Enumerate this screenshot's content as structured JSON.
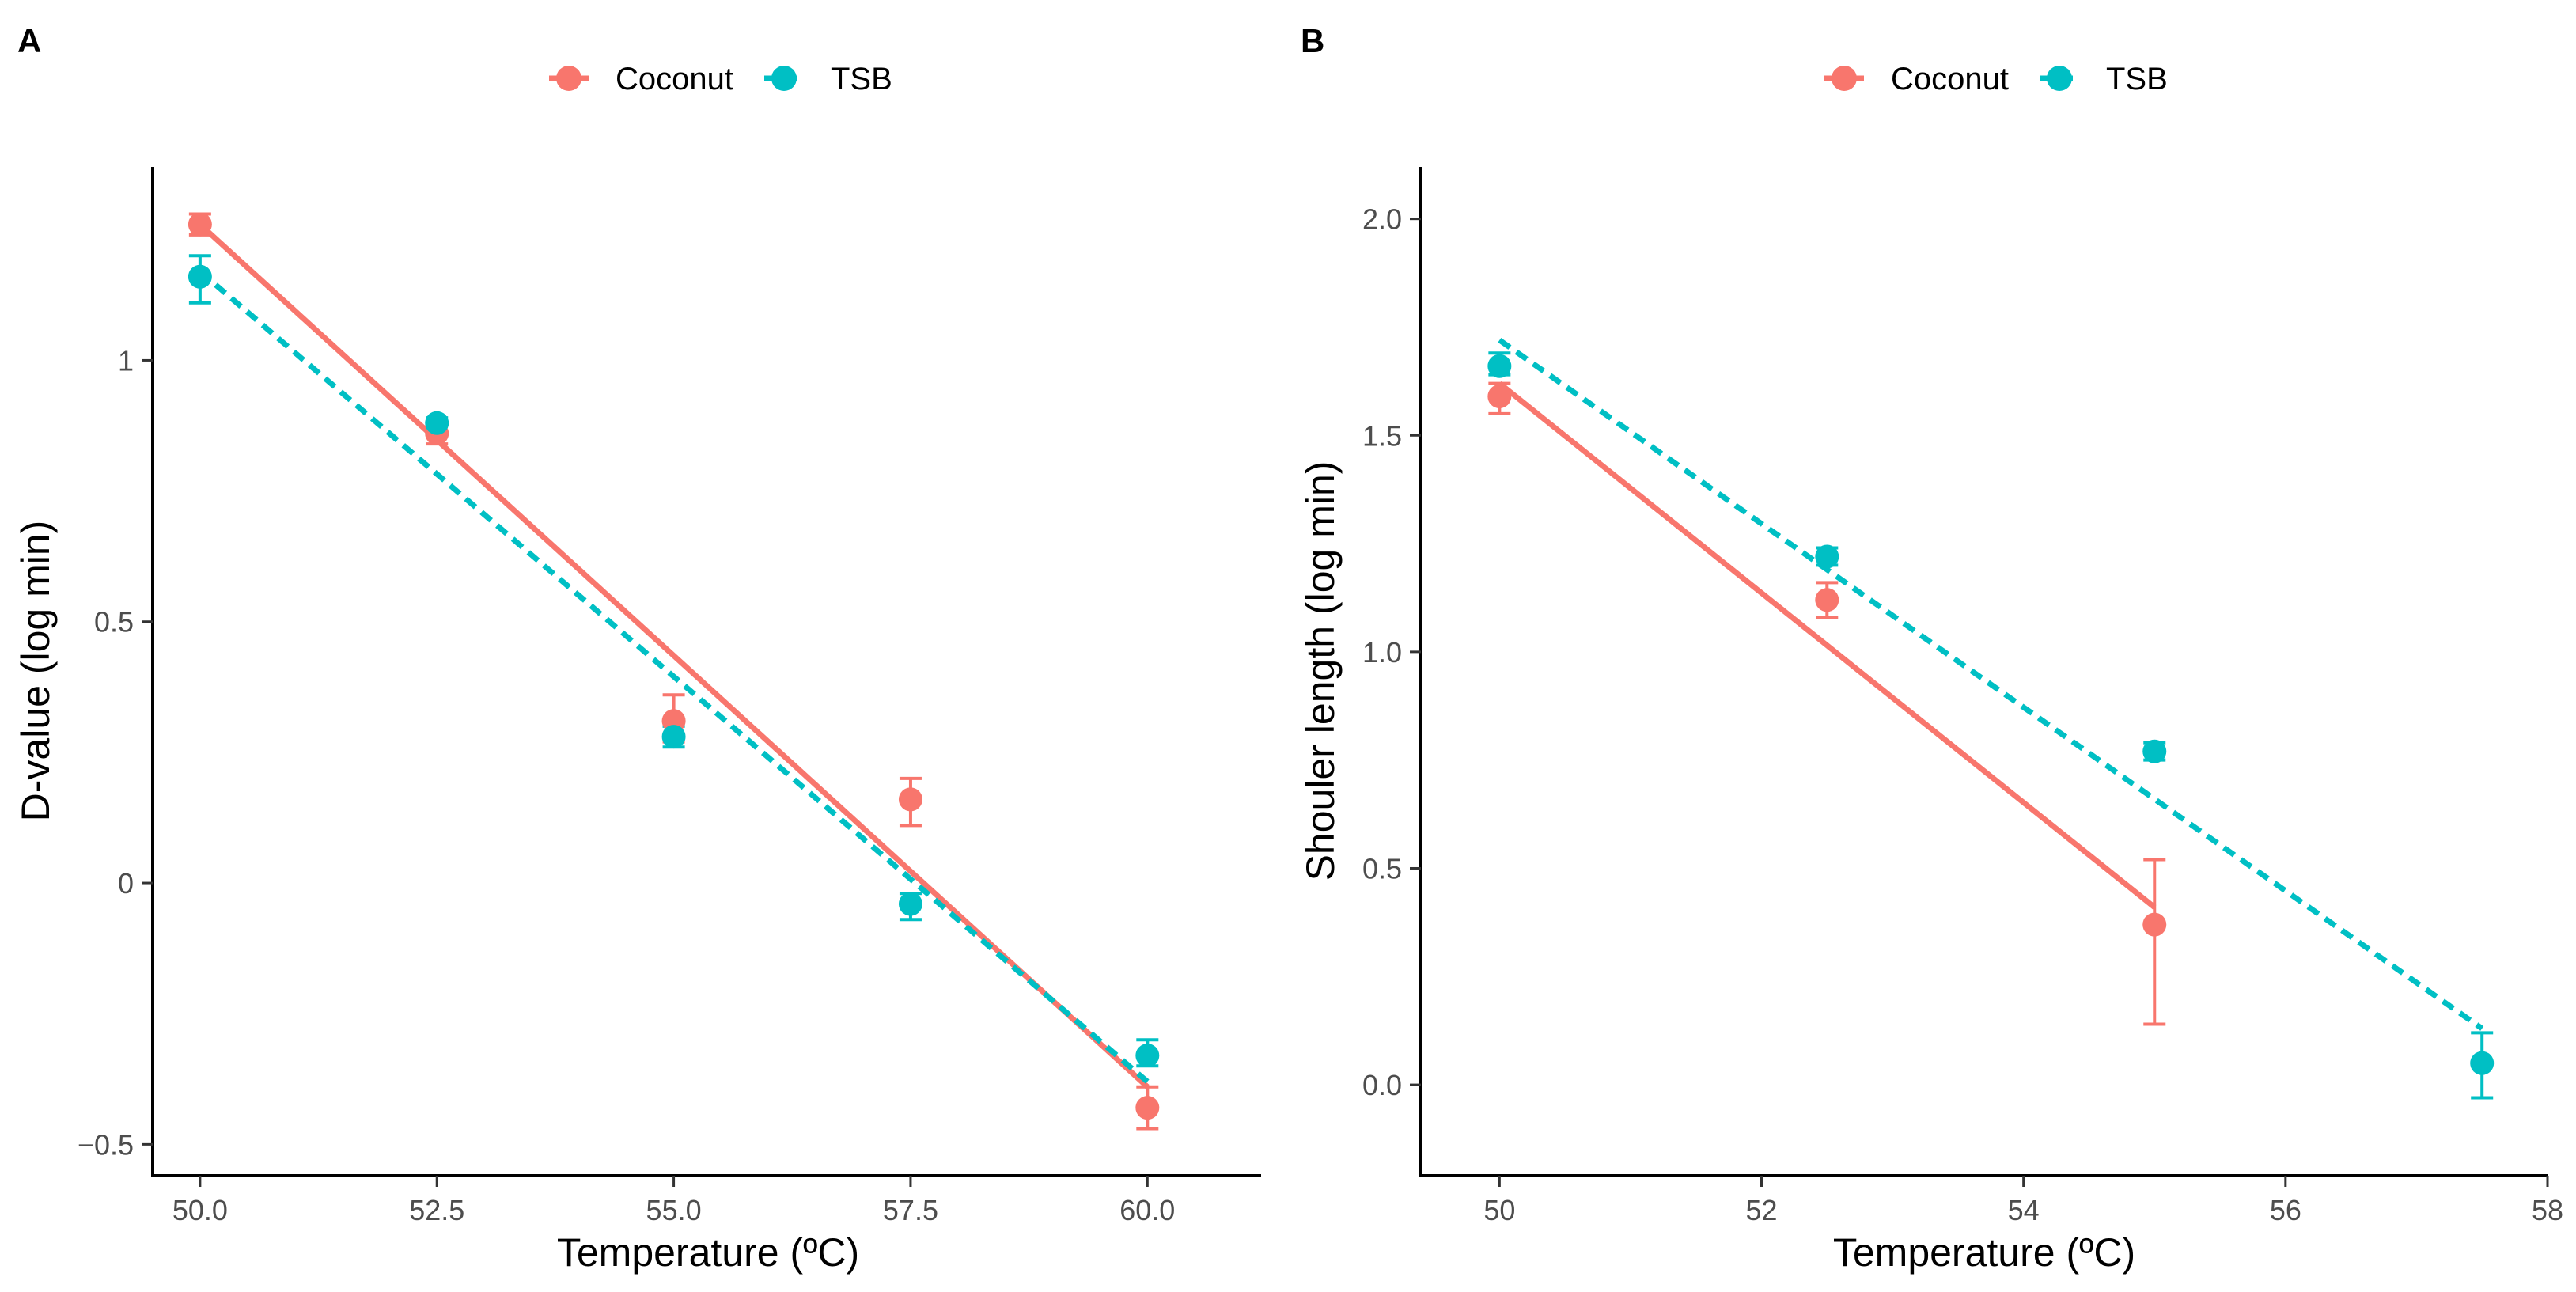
{
  "chart_data": [
    {
      "type": "scatter",
      "panel_label": "A",
      "xlabel": "Temperature (ºC)",
      "ylabel": "D-value (log min)",
      "xlim": [
        49.5,
        61.2
      ],
      "ylim": [
        -0.56,
        1.37
      ],
      "x_ticks": [
        50.0,
        52.5,
        55.0,
        57.5,
        60.0
      ],
      "x_tick_labels": [
        "50.0",
        "52.5",
        "55.0",
        "57.5",
        "60.0"
      ],
      "y_ticks": [
        -0.5,
        0,
        0.5,
        1
      ],
      "y_tick_labels": [
        "−0.5",
        "0",
        "0.5",
        "1"
      ],
      "grid": false,
      "legend": {
        "position": "top-center",
        "entries": [
          "Coconut",
          "TSB"
        ]
      },
      "series": [
        {
          "name": "Coconut",
          "color": "#F8766D",
          "line_style": "solid",
          "points": [
            {
              "x": 50.0,
              "y": 1.26,
              "lo": 1.24,
              "hi": 1.28
            },
            {
              "x": 52.5,
              "y": 0.86,
              "lo": 0.84,
              "hi": 0.88
            },
            {
              "x": 55.0,
              "y": 0.31,
              "lo": 0.27,
              "hi": 0.36
            },
            {
              "x": 57.5,
              "y": 0.16,
              "lo": 0.11,
              "hi": 0.2
            },
            {
              "x": 60.0,
              "y": -0.43,
              "lo": -0.47,
              "hi": -0.39
            }
          ],
          "fit": {
            "x": [
              50.0,
              60.0
            ],
            "y": [
              1.26,
              -0.39
            ]
          }
        },
        {
          "name": "TSB",
          "color": "#00BFC4",
          "line_style": "dashed",
          "points": [
            {
              "x": 50.0,
              "y": 1.16,
              "lo": 1.11,
              "hi": 1.2
            },
            {
              "x": 52.5,
              "y": 0.88,
              "lo": 0.86,
              "hi": 0.89
            },
            {
              "x": 55.0,
              "y": 0.28,
              "lo": 0.26,
              "hi": 0.3
            },
            {
              "x": 57.5,
              "y": -0.04,
              "lo": -0.07,
              "hi": -0.02
            },
            {
              "x": 60.0,
              "y": -0.33,
              "lo": -0.35,
              "hi": -0.3
            }
          ],
          "fit": {
            "x": [
              50.0,
              60.0
            ],
            "y": [
              1.17,
              -0.38
            ]
          }
        }
      ]
    },
    {
      "type": "scatter",
      "panel_label": "B",
      "xlabel": "Temperature (ºC)",
      "ylabel": "Shouler length (log min)",
      "xlim": [
        49.4,
        58.0
      ],
      "ylim": [
        -0.21,
        2.12
      ],
      "x_ticks": [
        50,
        52,
        54,
        56,
        58
      ],
      "x_tick_labels": [
        "50",
        "52",
        "54",
        "56",
        "58"
      ],
      "y_ticks": [
        0.0,
        0.5,
        1.0,
        1.5,
        2.0
      ],
      "y_tick_labels": [
        "0.0",
        "0.5",
        "1.0",
        "1.5",
        "2.0"
      ],
      "grid": false,
      "legend": {
        "position": "top-center",
        "entries": [
          "Coconut",
          "TSB"
        ]
      },
      "series": [
        {
          "name": "Coconut",
          "color": "#F8766D",
          "line_style": "solid",
          "points": [
            {
              "x": 50.0,
              "y": 1.59,
              "lo": 1.55,
              "hi": 1.62
            },
            {
              "x": 52.5,
              "y": 1.12,
              "lo": 1.08,
              "hi": 1.16
            },
            {
              "x": 55.0,
              "y": 0.37,
              "lo": 0.14,
              "hi": 0.52
            }
          ],
          "fit": {
            "x": [
              50.0,
              55.0
            ],
            "y": [
              1.62,
              0.41
            ]
          }
        },
        {
          "name": "TSB",
          "color": "#00BFC4",
          "line_style": "dashed",
          "points": [
            {
              "x": 50.0,
              "y": 1.66,
              "lo": 1.64,
              "hi": 1.69
            },
            {
              "x": 52.5,
              "y": 1.22,
              "lo": 1.2,
              "hi": 1.24
            },
            {
              "x": 55.0,
              "y": 0.77,
              "lo": 0.75,
              "hi": 0.79
            },
            {
              "x": 57.5,
              "y": 0.05,
              "lo": -0.03,
              "hi": 0.12
            }
          ],
          "fit": {
            "x": [
              50.0,
              57.5
            ],
            "y": [
              1.72,
              0.13
            ]
          }
        }
      ]
    }
  ]
}
